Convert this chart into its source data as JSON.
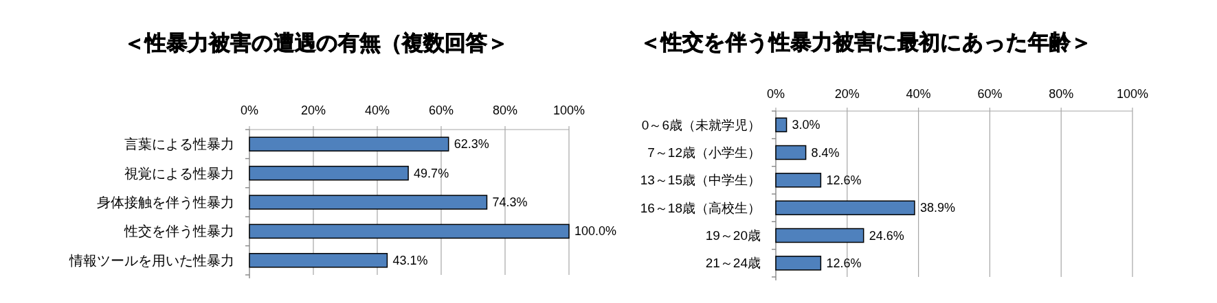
{
  "chart_data": [
    {
      "type": "bar",
      "orientation": "horizontal",
      "title": "＜性暴力被害の遭遇の有無（複数回答＞",
      "categories": [
        "言葉による性暴力",
        "視覚による性暴力",
        "身体接触を伴う性暴力",
        "性交を伴う性暴力",
        "情報ツールを用いた性暴力"
      ],
      "values": [
        62.3,
        49.7,
        74.3,
        100.0,
        43.1
      ],
      "value_labels": [
        "62.3%",
        "49.7%",
        "74.3%",
        "100.0%",
        "43.1%"
      ],
      "color": "#4f81bd",
      "xlim": [
        0,
        100
      ],
      "xticks": [
        {
          "value": 0,
          "label": "0%"
        },
        {
          "value": 20,
          "label": "20%"
        },
        {
          "value": 40,
          "label": "40%"
        },
        {
          "value": 60,
          "label": "60%"
        },
        {
          "value": 80,
          "label": "80%"
        },
        {
          "value": 100,
          "label": "100%"
        }
      ],
      "grid": "x"
    },
    {
      "type": "bar",
      "orientation": "horizontal",
      "title": "＜性交を伴う性暴力被害に最初にあった年齢＞",
      "categories": [
        "0～6歳（未就学児）",
        "7～12歳（小学生）",
        "13～15歳（中学生）",
        "16～18歳（高校生）",
        "19～20歳",
        "21～24歳"
      ],
      "values": [
        3.0,
        8.4,
        12.6,
        38.9,
        24.6,
        12.6
      ],
      "value_labels": [
        "3.0%",
        "8.4%",
        "12.6%",
        "38.9%",
        "24.6%",
        "12.6%"
      ],
      "color": "#4f81bd",
      "xlim": [
        0,
        100
      ],
      "xticks": [
        {
          "value": 0,
          "label": "0%"
        },
        {
          "value": 20,
          "label": "20%"
        },
        {
          "value": 40,
          "label": "40%"
        },
        {
          "value": 60,
          "label": "60%"
        },
        {
          "value": 80,
          "label": "80%"
        },
        {
          "value": 100,
          "label": "100%"
        }
      ],
      "grid": "x"
    }
  ]
}
